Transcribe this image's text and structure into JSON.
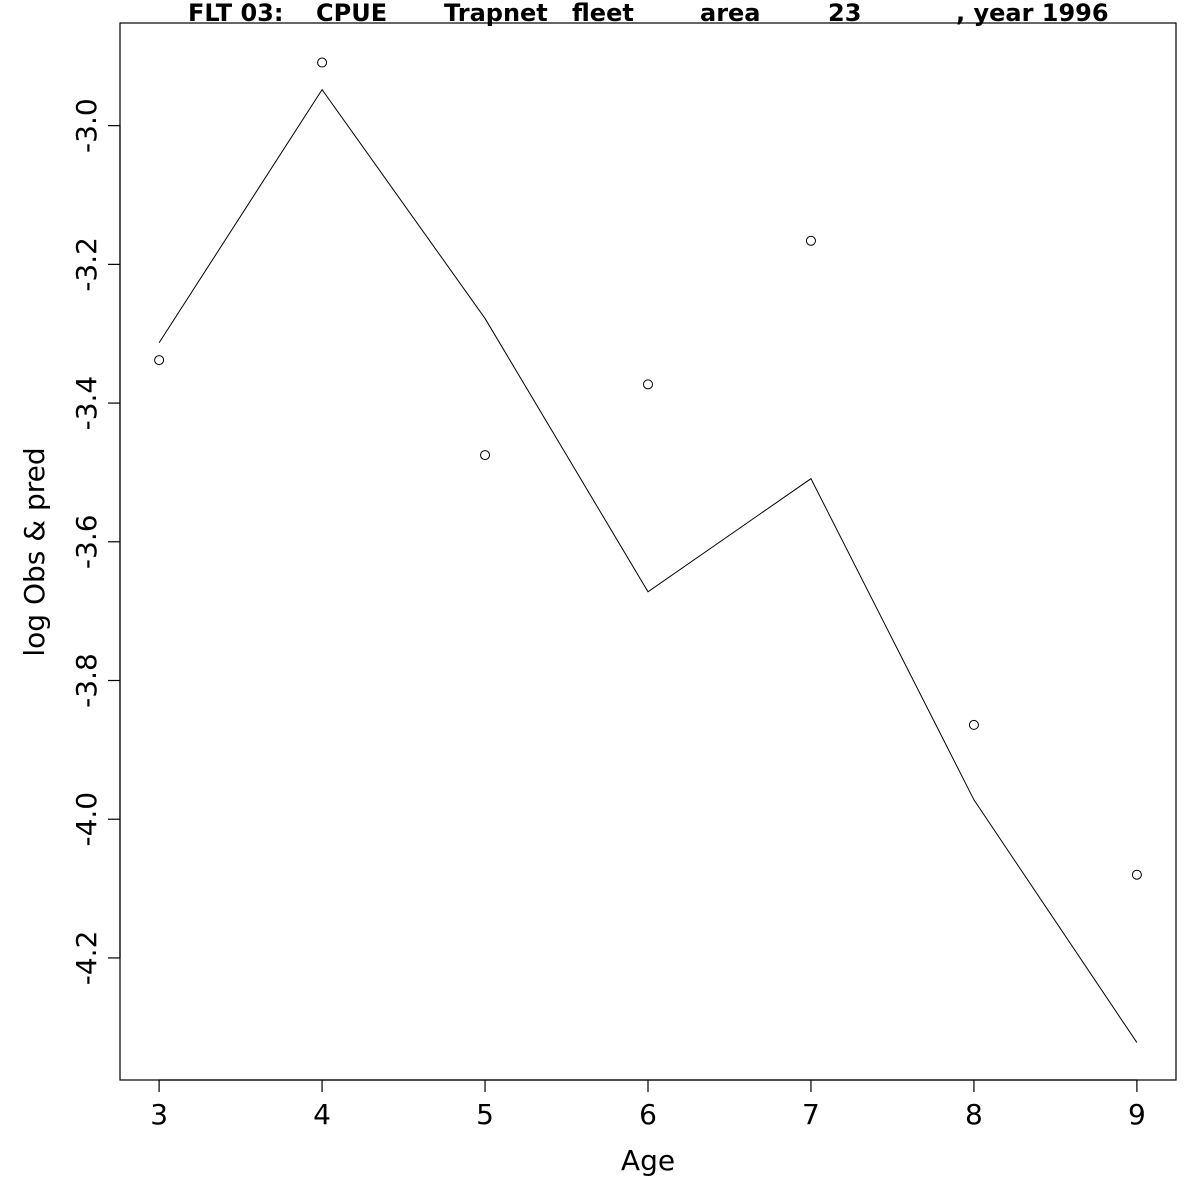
{
  "chart_data": {
    "type": "line",
    "title_parts": [
      "FLT 03:",
      "CPUE",
      "Trapnet",
      "fleet",
      "area",
      "23",
      ", year 1996"
    ],
    "xlabel": "Age",
    "ylabel": "log Obs & pred",
    "x": [
      3,
      4,
      5,
      6,
      7,
      8,
      9
    ],
    "x_ticks": [
      "3",
      "4",
      "5",
      "6",
      "7",
      "8",
      "9"
    ],
    "y_ticks": [
      "-3.0",
      "-3.2",
      "-3.4",
      "-3.6",
      "-3.8",
      "-4.0",
      "-4.2"
    ],
    "xlim": [
      2.76,
      9.24
    ],
    "ylim": [
      -4.376,
      -2.852
    ],
    "grid": false,
    "series": [
      {
        "kind": "points",
        "values": [
          -3.338,
          -2.909,
          -3.475,
          -3.373,
          -3.166,
          -3.864,
          -4.08
        ]
      },
      {
        "kind": "line",
        "values": [
          -3.313,
          -2.948,
          -3.278,
          -3.672,
          -3.509,
          -3.972,
          -4.322
        ]
      }
    ]
  }
}
